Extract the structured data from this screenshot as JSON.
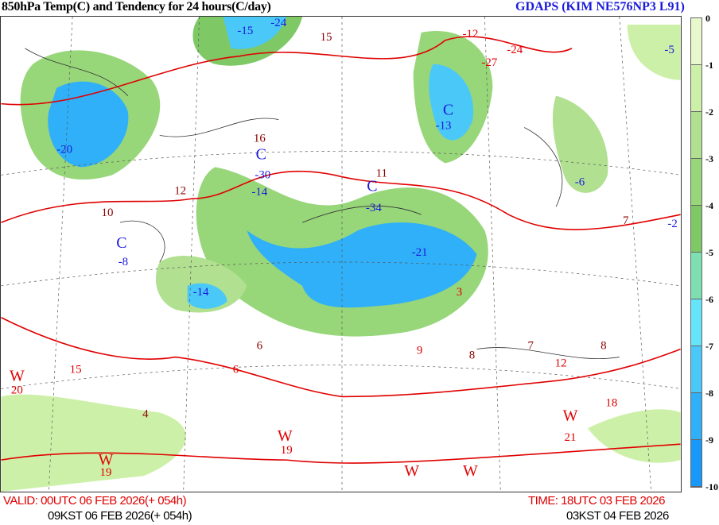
{
  "header": {
    "title": "850hPa Temp(C) and Tendency for 24 hours(C/day)",
    "model": "GDAPS (KIM NE576NP3 L91)"
  },
  "colorbar": {
    "labels": [
      "0",
      "-1",
      "-2",
      "-3",
      "-4",
      "-5",
      "-6",
      "-7",
      "-8",
      "-9",
      "-10"
    ],
    "colors": [
      "#e6f8cc",
      "#cdf0a8",
      "#b0e090",
      "#98d67a",
      "#7ec865",
      "#7ee0b0",
      "#66e4fa",
      "#4ac8f8",
      "#30b0f8",
      "#1898f8"
    ]
  },
  "map": {
    "colors": {
      "temperature_contour": "#e00000",
      "tendency_contour": "#222222",
      "cold_center": "#1a1adc",
      "warm_center": "#c00000",
      "coast": "#777777"
    },
    "labels": [
      {
        "text": "C",
        "kind": "cold"
      },
      {
        "text": "-30",
        "kind": "cold"
      },
      {
        "text": "-14",
        "kind": "cold"
      },
      {
        "text": "C",
        "kind": "cold"
      },
      {
        "text": "-34",
        "kind": "cold"
      },
      {
        "text": "C",
        "kind": "cold"
      },
      {
        "text": "-13",
        "kind": "cold"
      },
      {
        "text": "C",
        "kind": "cold"
      },
      {
        "text": "-8",
        "kind": "cold"
      },
      {
        "text": "-20",
        "kind": "cold"
      },
      {
        "text": "-15",
        "kind": "cold"
      },
      {
        "text": "-24",
        "kind": "cold"
      },
      {
        "text": "-14",
        "kind": "cold"
      },
      {
        "text": "-21",
        "kind": "cold"
      },
      {
        "text": "-6",
        "kind": "cold"
      },
      {
        "text": "-5",
        "kind": "cold"
      },
      {
        "text": "-2",
        "kind": "cold"
      },
      {
        "text": "W",
        "kind": "warm"
      },
      {
        "text": "20",
        "kind": "warm"
      },
      {
        "text": "W",
        "kind": "warm"
      },
      {
        "text": "19",
        "kind": "warm"
      },
      {
        "text": "W",
        "kind": "warm"
      },
      {
        "text": "19",
        "kind": "warm"
      },
      {
        "text": "W",
        "kind": "warm"
      },
      {
        "text": "W",
        "kind": "warm"
      },
      {
        "text": "W",
        "kind": "warm"
      },
      {
        "text": "21",
        "kind": "warm"
      },
      {
        "text": "12",
        "kind": "tend"
      },
      {
        "text": "10",
        "kind": "tend"
      },
      {
        "text": "16",
        "kind": "tend"
      },
      {
        "text": "15",
        "kind": "tend"
      },
      {
        "text": "11",
        "kind": "tend"
      },
      {
        "text": "8",
        "kind": "tend"
      },
      {
        "text": "7",
        "kind": "tend"
      },
      {
        "text": "8",
        "kind": "tend"
      },
      {
        "text": "4",
        "kind": "tend"
      },
      {
        "text": "6",
        "kind": "tend"
      },
      {
        "text": "7",
        "kind": "tend"
      },
      {
        "text": "-12",
        "kind": "temp"
      },
      {
        "text": "-27",
        "kind": "temp"
      },
      {
        "text": "-24",
        "kind": "temp"
      },
      {
        "text": "15",
        "kind": "temp"
      },
      {
        "text": "12",
        "kind": "temp"
      },
      {
        "text": "18",
        "kind": "temp"
      },
      {
        "text": "3",
        "kind": "temp"
      },
      {
        "text": "6",
        "kind": "temp"
      },
      {
        "text": "9",
        "kind": "temp"
      }
    ]
  },
  "footer": {
    "valid_utc": "VALID: 00UTC 06 FEB 2026(+ 054h)",
    "valid_kst": "09KST 06 FEB 2026(+ 054h)",
    "time_utc": "TIME: 18UTC 03 FEB 2026",
    "time_kst": "03KST 04 FEB 2026"
  }
}
